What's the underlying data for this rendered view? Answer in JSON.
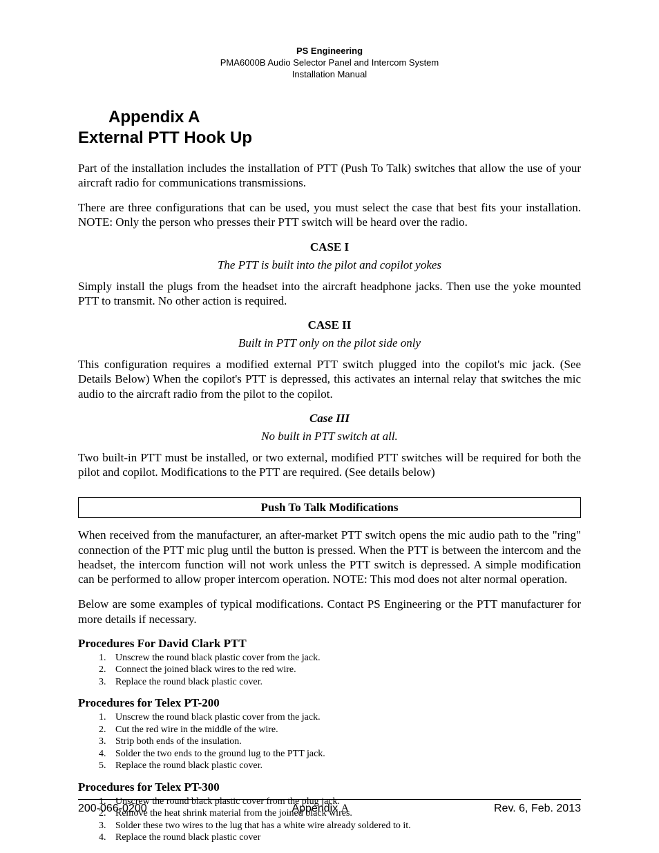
{
  "header": {
    "company": "PS Engineering",
    "product": "PMA6000B Audio Selector Panel and Intercom System",
    "manual": "Installation Manual"
  },
  "title": {
    "appendix": "Appendix A",
    "main": "External PTT  Hook Up"
  },
  "intro": {
    "p1": "Part of the installation includes the installation of PTT  (Push To Talk) switches that allow the use of your aircraft radio for communications transmissions.",
    "p2": "There are three configurations that can be used, you must select the case that best fits your installation. NOTE: Only the person who presses their PTT switch will be heard over the radio."
  },
  "case1": {
    "heading": "CASE I",
    "subtitle": "The PTT is built into the pilot and copilot yokes",
    "body": "Simply install the plugs from the headset into the aircraft headphone jacks. Then use the yoke mounted PTT to transmit. No other action is required."
  },
  "case2": {
    "heading": "CASE II",
    "subtitle": "Built in PTT only on the pilot side only",
    "body": "This configuration requires a modified external PTT switch plugged into the copilot's mic jack. (See Details Below)  When the copilot's PTT is depressed, this activates an internal relay that switches the mic audio to the aircraft radio from the pilot to the copilot."
  },
  "case3": {
    "heading": "Case III",
    "subtitle": "No built in PTT switch at all.",
    "body": "Two built-in PTT must be installed, or two external, modified PTT switches will be required for both the pilot and copilot. Modifications to the PTT are required. (See details below)"
  },
  "mod": {
    "box_title": "Push To Talk Modifications",
    "p1": "When received from the manufacturer, an after-market PTT switch opens the mic audio path to the \"ring\" connection of the PTT mic plug until the button is pressed. When the PTT is between the intercom and the headset, the intercom function will not work unless the PTT switch is depressed. A simple modification can be performed to allow proper intercom operation. NOTE: This mod does not alter normal operation.",
    "p2": "Below are some examples of typical modifications. Contact PS Engineering or the PTT manufacturer for more details if necessary."
  },
  "procedures": [
    {
      "heading": "Procedures For David Clark PTT",
      "steps": [
        "Unscrew the round black plastic cover from the jack.",
        "Connect the joined black wires to the red wire.",
        "Replace the round black plastic cover."
      ]
    },
    {
      "heading": "Procedures for Telex PT-200",
      "steps": [
        "Unscrew the round black plastic cover from the jack.",
        "Cut the red wire in the middle of the wire.",
        "Strip both ends of the insulation.",
        "Solder the two ends to the ground lug to the PTT jack.",
        "Replace the round black plastic cover."
      ]
    },
    {
      "heading": "Procedures for Telex PT-300",
      "steps": [
        "Unscrew the round black plastic cover from the plug jack.",
        "Remove the heat shrink material from the joined black wires.",
        "Solder these two wires to the lug that has a white wire already soldered to it.",
        "Replace the round black plastic cover"
      ]
    }
  ],
  "footer": {
    "left": "200-066-0200",
    "center_prefix": "Appendix ",
    "center_letter": "A",
    "right": "Rev. 6, Feb. 2013"
  }
}
